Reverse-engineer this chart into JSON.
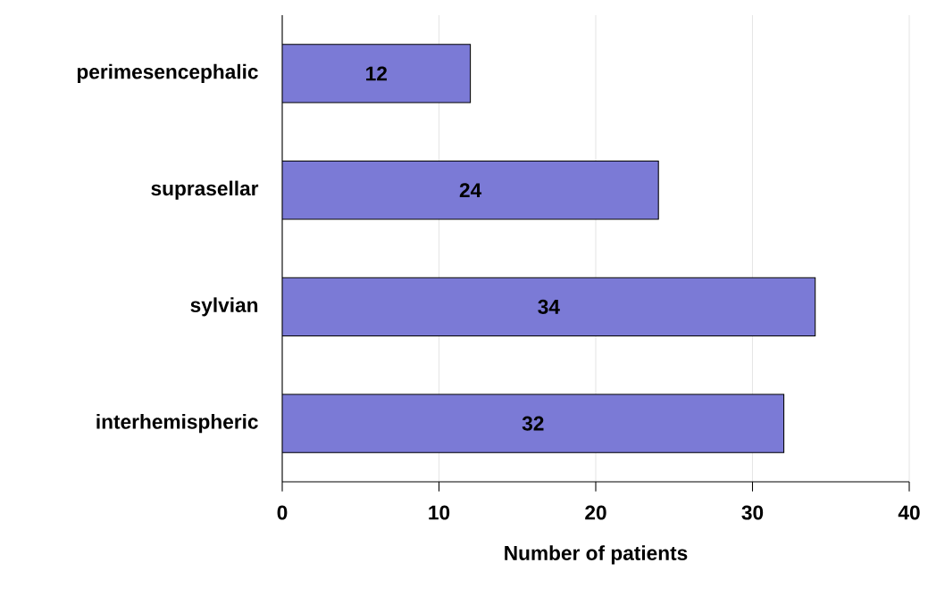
{
  "chart_data": {
    "type": "bar",
    "orientation": "horizontal",
    "categories": [
      "perimesencephalic",
      "suprasellar",
      "sylvian",
      "interhemispheric"
    ],
    "values": [
      12,
      24,
      34,
      32
    ],
    "color": "#7b7ad6",
    "xlim": [
      0,
      40
    ],
    "xticks": [
      0,
      10,
      20,
      30,
      40
    ],
    "xlabel": "Number of patients",
    "grid": "x",
    "data_labels": true
  }
}
